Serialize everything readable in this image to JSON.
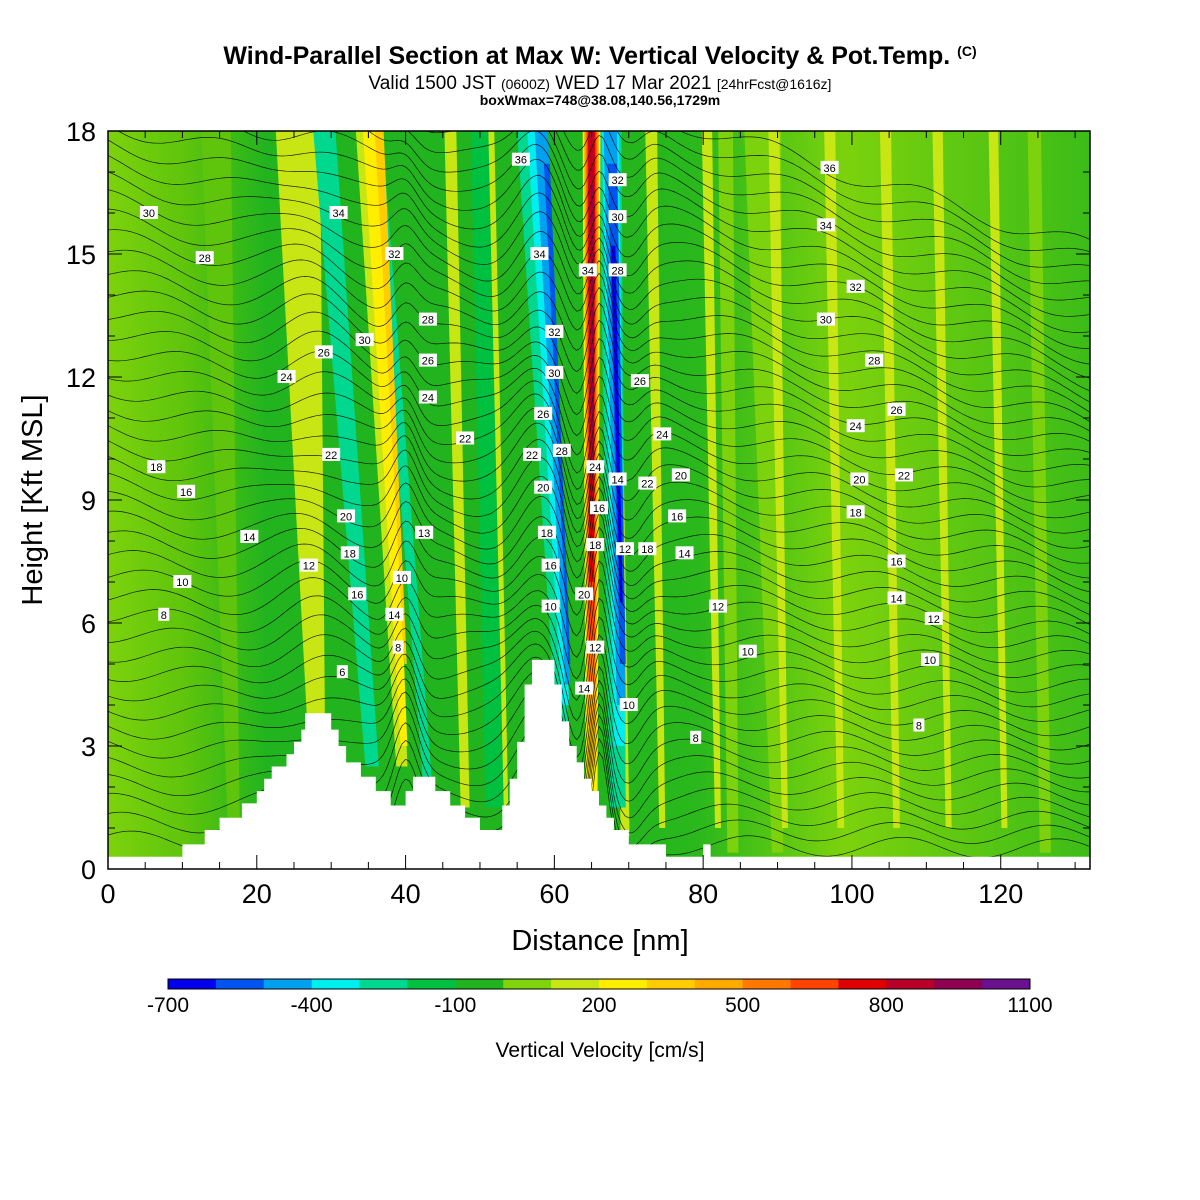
{
  "header": {
    "title": "Wind-Parallel Section at Max W: Vertical Velocity & Pot.Temp.",
    "title_mark": "(C)",
    "subtitle_main": "Valid 1500 JST",
    "subtitle_z": "(0600Z)",
    "subtitle_date": "WED 17 Mar 2021",
    "subtitle_fcst": "[24hrFcst@1616z]",
    "subtitle2": "boxWmax=748@38.08,140.56,1729m"
  },
  "chart_data": {
    "type": "contour-section",
    "xlabel": "Distance [nm]",
    "ylabel": "Height [Kft MSL]",
    "xlim": [
      0,
      132
    ],
    "ylim": [
      0,
      18
    ],
    "xticks": [
      0,
      20,
      40,
      60,
      80,
      100,
      120
    ],
    "yticks": [
      0,
      3,
      6,
      9,
      12,
      15,
      18
    ],
    "colorbar": {
      "label": "Vertical Velocity [cm/s]",
      "colors": [
        "#0000ee",
        "#0055ee",
        "#00a0f0",
        "#00eeee",
        "#00d890",
        "#00c040",
        "#22b41e",
        "#80d40c",
        "#c8e614",
        "#ffee00",
        "#ffcc00",
        "#ffaa00",
        "#ff7800",
        "#ff4400",
        "#e00000",
        "#b80028",
        "#900050",
        "#6a1090"
      ],
      "tick_labels": [
        "-700",
        "-400",
        "-100",
        "200",
        "500",
        "800",
        "1100"
      ]
    },
    "terrain_kft": [
      [
        0,
        0.3
      ],
      [
        10,
        0.3
      ],
      [
        10,
        0.6
      ],
      [
        13,
        0.6
      ],
      [
        13,
        0.95
      ],
      [
        15,
        0.95
      ],
      [
        15,
        1.25
      ],
      [
        18,
        1.25
      ],
      [
        18,
        1.6
      ],
      [
        20,
        1.6
      ],
      [
        20,
        1.9
      ],
      [
        21,
        1.9
      ],
      [
        21,
        2.2
      ],
      [
        22,
        2.2
      ],
      [
        22,
        2.5
      ],
      [
        24,
        2.5
      ],
      [
        24,
        2.8
      ],
      [
        25,
        2.8
      ],
      [
        25,
        3.1
      ],
      [
        26,
        3.1
      ],
      [
        26,
        3.4
      ],
      [
        26.5,
        3.4
      ],
      [
        26.5,
        3.8
      ],
      [
        30,
        3.8
      ],
      [
        30,
        3.4
      ],
      [
        31,
        3.4
      ],
      [
        31,
        3.0
      ],
      [
        32,
        3.0
      ],
      [
        32,
        2.6
      ],
      [
        34,
        2.6
      ],
      [
        34,
        2.25
      ],
      [
        36,
        2.25
      ],
      [
        36,
        1.9
      ],
      [
        38,
        1.9
      ],
      [
        38,
        1.55
      ],
      [
        40,
        1.55
      ],
      [
        40,
        1.9
      ],
      [
        41,
        1.9
      ],
      [
        41,
        2.25
      ],
      [
        44,
        2.25
      ],
      [
        44,
        1.9
      ],
      [
        46,
        1.9
      ],
      [
        46,
        1.55
      ],
      [
        48,
        1.55
      ],
      [
        48,
        1.25
      ],
      [
        50,
        1.25
      ],
      [
        50,
        0.95
      ],
      [
        53,
        0.95
      ],
      [
        53,
        1.55
      ],
      [
        54,
        1.55
      ],
      [
        54,
        2.2
      ],
      [
        55,
        2.2
      ],
      [
        55,
        3.1
      ],
      [
        56,
        3.1
      ],
      [
        56,
        4.5
      ],
      [
        57,
        4.5
      ],
      [
        57,
        5.1
      ],
      [
        60,
        5.1
      ],
      [
        60,
        4.5
      ],
      [
        61,
        4.5
      ],
      [
        61,
        3.6
      ],
      [
        62,
        3.6
      ],
      [
        62,
        3.0
      ],
      [
        63,
        3.0
      ],
      [
        63,
        2.6
      ],
      [
        64,
        2.6
      ],
      [
        64,
        2.2
      ],
      [
        65,
        2.2
      ],
      [
        65,
        1.9
      ],
      [
        66,
        1.9
      ],
      [
        66,
        1.55
      ],
      [
        67,
        1.55
      ],
      [
        67,
        1.25
      ],
      [
        68,
        1.25
      ],
      [
        68,
        0.95
      ],
      [
        70,
        0.95
      ],
      [
        70,
        0.6
      ],
      [
        75,
        0.6
      ],
      [
        75,
        0.3
      ],
      [
        80,
        0.3
      ],
      [
        80,
        0.6
      ],
      [
        81,
        0.6
      ],
      [
        81,
        0.3
      ],
      [
        132,
        0.3
      ]
    ],
    "contour_labels": [
      {
        "t": "30",
        "x": 5.5,
        "y": 16.0
      },
      {
        "t": "28",
        "x": 13,
        "y": 14.9
      },
      {
        "t": "24",
        "x": 24,
        "y": 12.0
      },
      {
        "t": "26",
        "x": 29,
        "y": 12.6
      },
      {
        "t": "34",
        "x": 31,
        "y": 16.0
      },
      {
        "t": "30",
        "x": 34.5,
        "y": 12.9
      },
      {
        "t": "32",
        "x": 38.5,
        "y": 15.0
      },
      {
        "t": "28",
        "x": 43,
        "y": 13.4
      },
      {
        "t": "26",
        "x": 43,
        "y": 12.4
      },
      {
        "t": "24",
        "x": 43,
        "y": 11.5
      },
      {
        "t": "22",
        "x": 48,
        "y": 10.5
      },
      {
        "t": "22",
        "x": 30,
        "y": 10.1
      },
      {
        "t": "20",
        "x": 32,
        "y": 8.6
      },
      {
        "t": "18",
        "x": 32.5,
        "y": 7.7
      },
      {
        "t": "16",
        "x": 33.5,
        "y": 6.7
      },
      {
        "t": "12",
        "x": 27,
        "y": 7.4
      },
      {
        "t": "14",
        "x": 19,
        "y": 8.1
      },
      {
        "t": "18",
        "x": 6.5,
        "y": 9.8
      },
      {
        "t": "16",
        "x": 10.5,
        "y": 9.2
      },
      {
        "t": "10",
        "x": 10,
        "y": 7.0
      },
      {
        "t": "8",
        "x": 7.5,
        "y": 6.2
      },
      {
        "t": "13",
        "x": 42.5,
        "y": 8.2
      },
      {
        "t": "10",
        "x": 39.5,
        "y": 7.1
      },
      {
        "t": "14",
        "x": 38.5,
        "y": 6.2
      },
      {
        "t": "8",
        "x": 39,
        "y": 5.4
      },
      {
        "t": "6",
        "x": 31.5,
        "y": 4.8
      },
      {
        "t": "36",
        "x": 55.5,
        "y": 17.3
      },
      {
        "t": "34",
        "x": 58,
        "y": 15.0
      },
      {
        "t": "32",
        "x": 60,
        "y": 13.1
      },
      {
        "t": "30",
        "x": 60,
        "y": 12.1
      },
      {
        "t": "26",
        "x": 58.5,
        "y": 11.1
      },
      {
        "t": "28",
        "x": 61,
        "y": 10.2
      },
      {
        "t": "22",
        "x": 57,
        "y": 10.1
      },
      {
        "t": "20",
        "x": 58.5,
        "y": 9.3
      },
      {
        "t": "18",
        "x": 59,
        "y": 8.2
      },
      {
        "t": "16",
        "x": 59.5,
        "y": 7.4
      },
      {
        "t": "10",
        "x": 59.5,
        "y": 6.4
      },
      {
        "t": "20",
        "x": 64,
        "y": 6.7
      },
      {
        "t": "18",
        "x": 65.5,
        "y": 7.9
      },
      {
        "t": "16",
        "x": 66,
        "y": 8.8
      },
      {
        "t": "24",
        "x": 65.5,
        "y": 9.8
      },
      {
        "t": "12",
        "x": 65.5,
        "y": 5.4
      },
      {
        "t": "14",
        "x": 64,
        "y": 4.4
      },
      {
        "t": "34",
        "x": 64.5,
        "y": 14.6
      },
      {
        "t": "32",
        "x": 68.5,
        "y": 16.8
      },
      {
        "t": "30",
        "x": 68.5,
        "y": 15.9
      },
      {
        "t": "28",
        "x": 68.5,
        "y": 14.6
      },
      {
        "t": "26",
        "x": 71.5,
        "y": 11.9
      },
      {
        "t": "14",
        "x": 68.5,
        "y": 9.5
      },
      {
        "t": "12",
        "x": 69.5,
        "y": 7.8
      },
      {
        "t": "18",
        "x": 72.5,
        "y": 7.8
      },
      {
        "t": "22",
        "x": 72.5,
        "y": 9.4
      },
      {
        "t": "24",
        "x": 74.5,
        "y": 10.6
      },
      {
        "t": "20",
        "x": 77,
        "y": 9.6
      },
      {
        "t": "16",
        "x": 76.5,
        "y": 8.6
      },
      {
        "t": "14",
        "x": 77.5,
        "y": 7.7
      },
      {
        "t": "12",
        "x": 82,
        "y": 6.4
      },
      {
        "t": "10",
        "x": 86,
        "y": 5.3
      },
      {
        "t": "10",
        "x": 70,
        "y": 4.0
      },
      {
        "t": "8",
        "x": 79,
        "y": 3.2
      },
      {
        "t": "36",
        "x": 97,
        "y": 17.1
      },
      {
        "t": "34",
        "x": 96.5,
        "y": 15.7
      },
      {
        "t": "32",
        "x": 100.5,
        "y": 14.2
      },
      {
        "t": "30",
        "x": 96.5,
        "y": 13.4
      },
      {
        "t": "28",
        "x": 103,
        "y": 12.4
      },
      {
        "t": "26",
        "x": 106,
        "y": 11.2
      },
      {
        "t": "24",
        "x": 100.5,
        "y": 10.8
      },
      {
        "t": "22",
        "x": 107,
        "y": 9.6
      },
      {
        "t": "20",
        "x": 101,
        "y": 9.5
      },
      {
        "t": "18",
        "x": 100.5,
        "y": 8.7
      },
      {
        "t": "16",
        "x": 106,
        "y": 7.5
      },
      {
        "t": "14",
        "x": 106,
        "y": 6.6
      },
      {
        "t": "12",
        "x": 111,
        "y": 6.1
      },
      {
        "t": "10",
        "x": 110.5,
        "y": 5.1
      },
      {
        "t": "8",
        "x": 109,
        "y": 3.5
      }
    ]
  }
}
